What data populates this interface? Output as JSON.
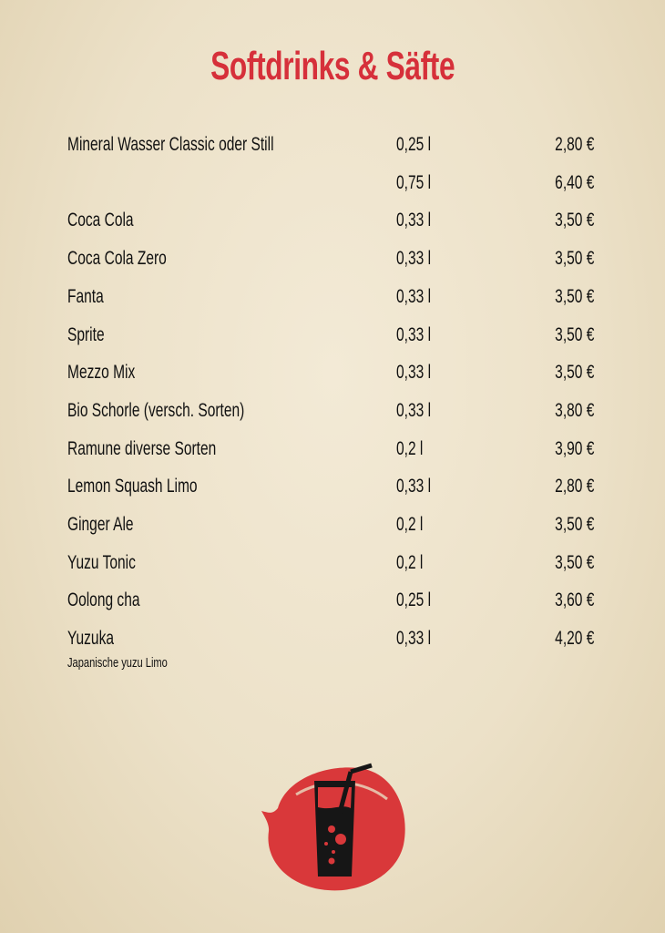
{
  "title": "Softdrinks & Säfte",
  "items": [
    {
      "name": "Mineral Wasser Classic oder Still",
      "volume": "0,25 l",
      "price": "2,80 €"
    },
    {
      "name": "",
      "volume": "0,75 l",
      "price": "6,40 €"
    },
    {
      "name": "Coca Cola",
      "volume": "0,33 l",
      "price": "3,50 €"
    },
    {
      "name": "Coca Cola Zero",
      "volume": "0,33 l",
      "price": "3,50 €"
    },
    {
      "name": "Fanta",
      "volume": "0,33 l",
      "price": "3,50 €"
    },
    {
      "name": "Sprite",
      "volume": "0,33 l",
      "price": "3,50 €"
    },
    {
      "name": "Mezzo Mix",
      "volume": "0,33 l",
      "price": "3,50 €"
    },
    {
      "name": "Bio Schorle (versch. Sorten)",
      "volume": "0,33 l",
      "price": "3,80 €"
    },
    {
      "name": "Ramune diverse Sorten",
      "volume": "0,2 l",
      "price": "3,90 €"
    },
    {
      "name": "Lemon Squash Limo",
      "volume": "0,33 l",
      "price": "2,80 €"
    },
    {
      "name": "Ginger Ale",
      "volume": "0,2 l",
      "price": "3,50 €"
    },
    {
      "name": "Yuzu Tonic",
      "volume": "0,2 l",
      "price": "3,50 €"
    },
    {
      "name": "Oolong cha",
      "volume": "0,25 l",
      "price": "3,60 €"
    },
    {
      "name": "Yuzuka",
      "volume": "0,33 l",
      "price": "4,20 €",
      "description": "Japanische yuzu Limo"
    }
  ],
  "colors": {
    "accent": "#d6303a",
    "text": "#111111"
  },
  "logo_icon": "drink-glass-with-straw-on-red-circle"
}
